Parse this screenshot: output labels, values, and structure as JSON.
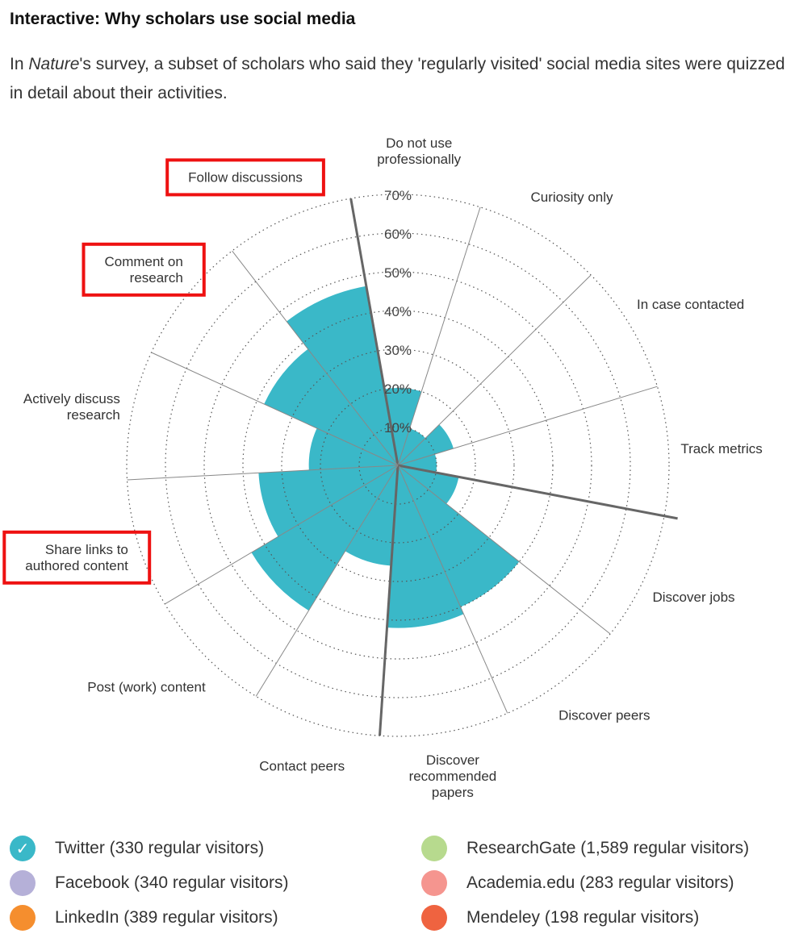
{
  "header": {
    "title": "Interactive: Why scholars use social media",
    "intro_pre": "In ",
    "intro_em": "Nature",
    "intro_post": "'s survey, a subset of scholars who said they 'regularly visited' social media sites were quizzed in detail about their activities."
  },
  "chart_data": {
    "type": "polar-area",
    "radial_ticks": [
      "10%",
      "20%",
      "30%",
      "40%",
      "50%",
      "60%",
      "70%"
    ],
    "r_max": 70,
    "active_series": "Twitter (330 regular visitors)",
    "series_color": "#3ab8c8",
    "highlight_color": "#ee1111",
    "categories": [
      {
        "lines": [
          "Do not use",
          "professionally"
        ],
        "value": 20,
        "highlight": false
      },
      {
        "lines": [
          "Curiosity only"
        ],
        "value": 10,
        "highlight": false
      },
      {
        "lines": [
          "In case contacted"
        ],
        "value": 15,
        "highlight": false
      },
      {
        "lines": [
          "Track metrics"
        ],
        "value": 10,
        "highlight": false
      },
      {
        "lines": [
          "Discover jobs"
        ],
        "value": 16,
        "highlight": false
      },
      {
        "lines": [
          "Discover peers"
        ],
        "value": 40,
        "highlight": false
      },
      {
        "lines": [
          "Discover",
          "recommended",
          "papers"
        ],
        "value": 42,
        "highlight": false
      },
      {
        "lines": [
          "Contact peers"
        ],
        "value": 26,
        "highlight": false
      },
      {
        "lines": [
          "Post (work) content"
        ],
        "value": 44,
        "highlight": false
      },
      {
        "lines": [
          "Share links to",
          "authored content"
        ],
        "value": 36,
        "highlight": true
      },
      {
        "lines": [
          "Actively discuss",
          "research"
        ],
        "value": 23,
        "highlight": false
      },
      {
        "lines": [
          "Comment on",
          "research"
        ],
        "value": 38,
        "highlight": true
      },
      {
        "lines": [
          "Follow discussions"
        ],
        "value": 47,
        "highlight": true
      }
    ]
  },
  "legend": {
    "items": [
      {
        "label": "Twitter (330 regular visitors)",
        "color": "#3ab8c8",
        "checked": true,
        "check_glyph": "✓"
      },
      {
        "label": "ResearchGate (1,589 regular visitors)",
        "color": "#b7da8e",
        "checked": false,
        "check_glyph": ""
      },
      {
        "label": "Facebook (340 regular visitors)",
        "color": "#b5b0d8",
        "checked": false,
        "check_glyph": ""
      },
      {
        "label": "Academia.edu (283 regular visitors)",
        "color": "#f5958f",
        "checked": false,
        "check_glyph": ""
      },
      {
        "label": "LinkedIn (389 regular visitors)",
        "color": "#f58e2e",
        "checked": false,
        "check_glyph": ""
      },
      {
        "label": "Mendeley (198 regular visitors)",
        "color": "#ef6340",
        "checked": false,
        "check_glyph": ""
      }
    ]
  }
}
